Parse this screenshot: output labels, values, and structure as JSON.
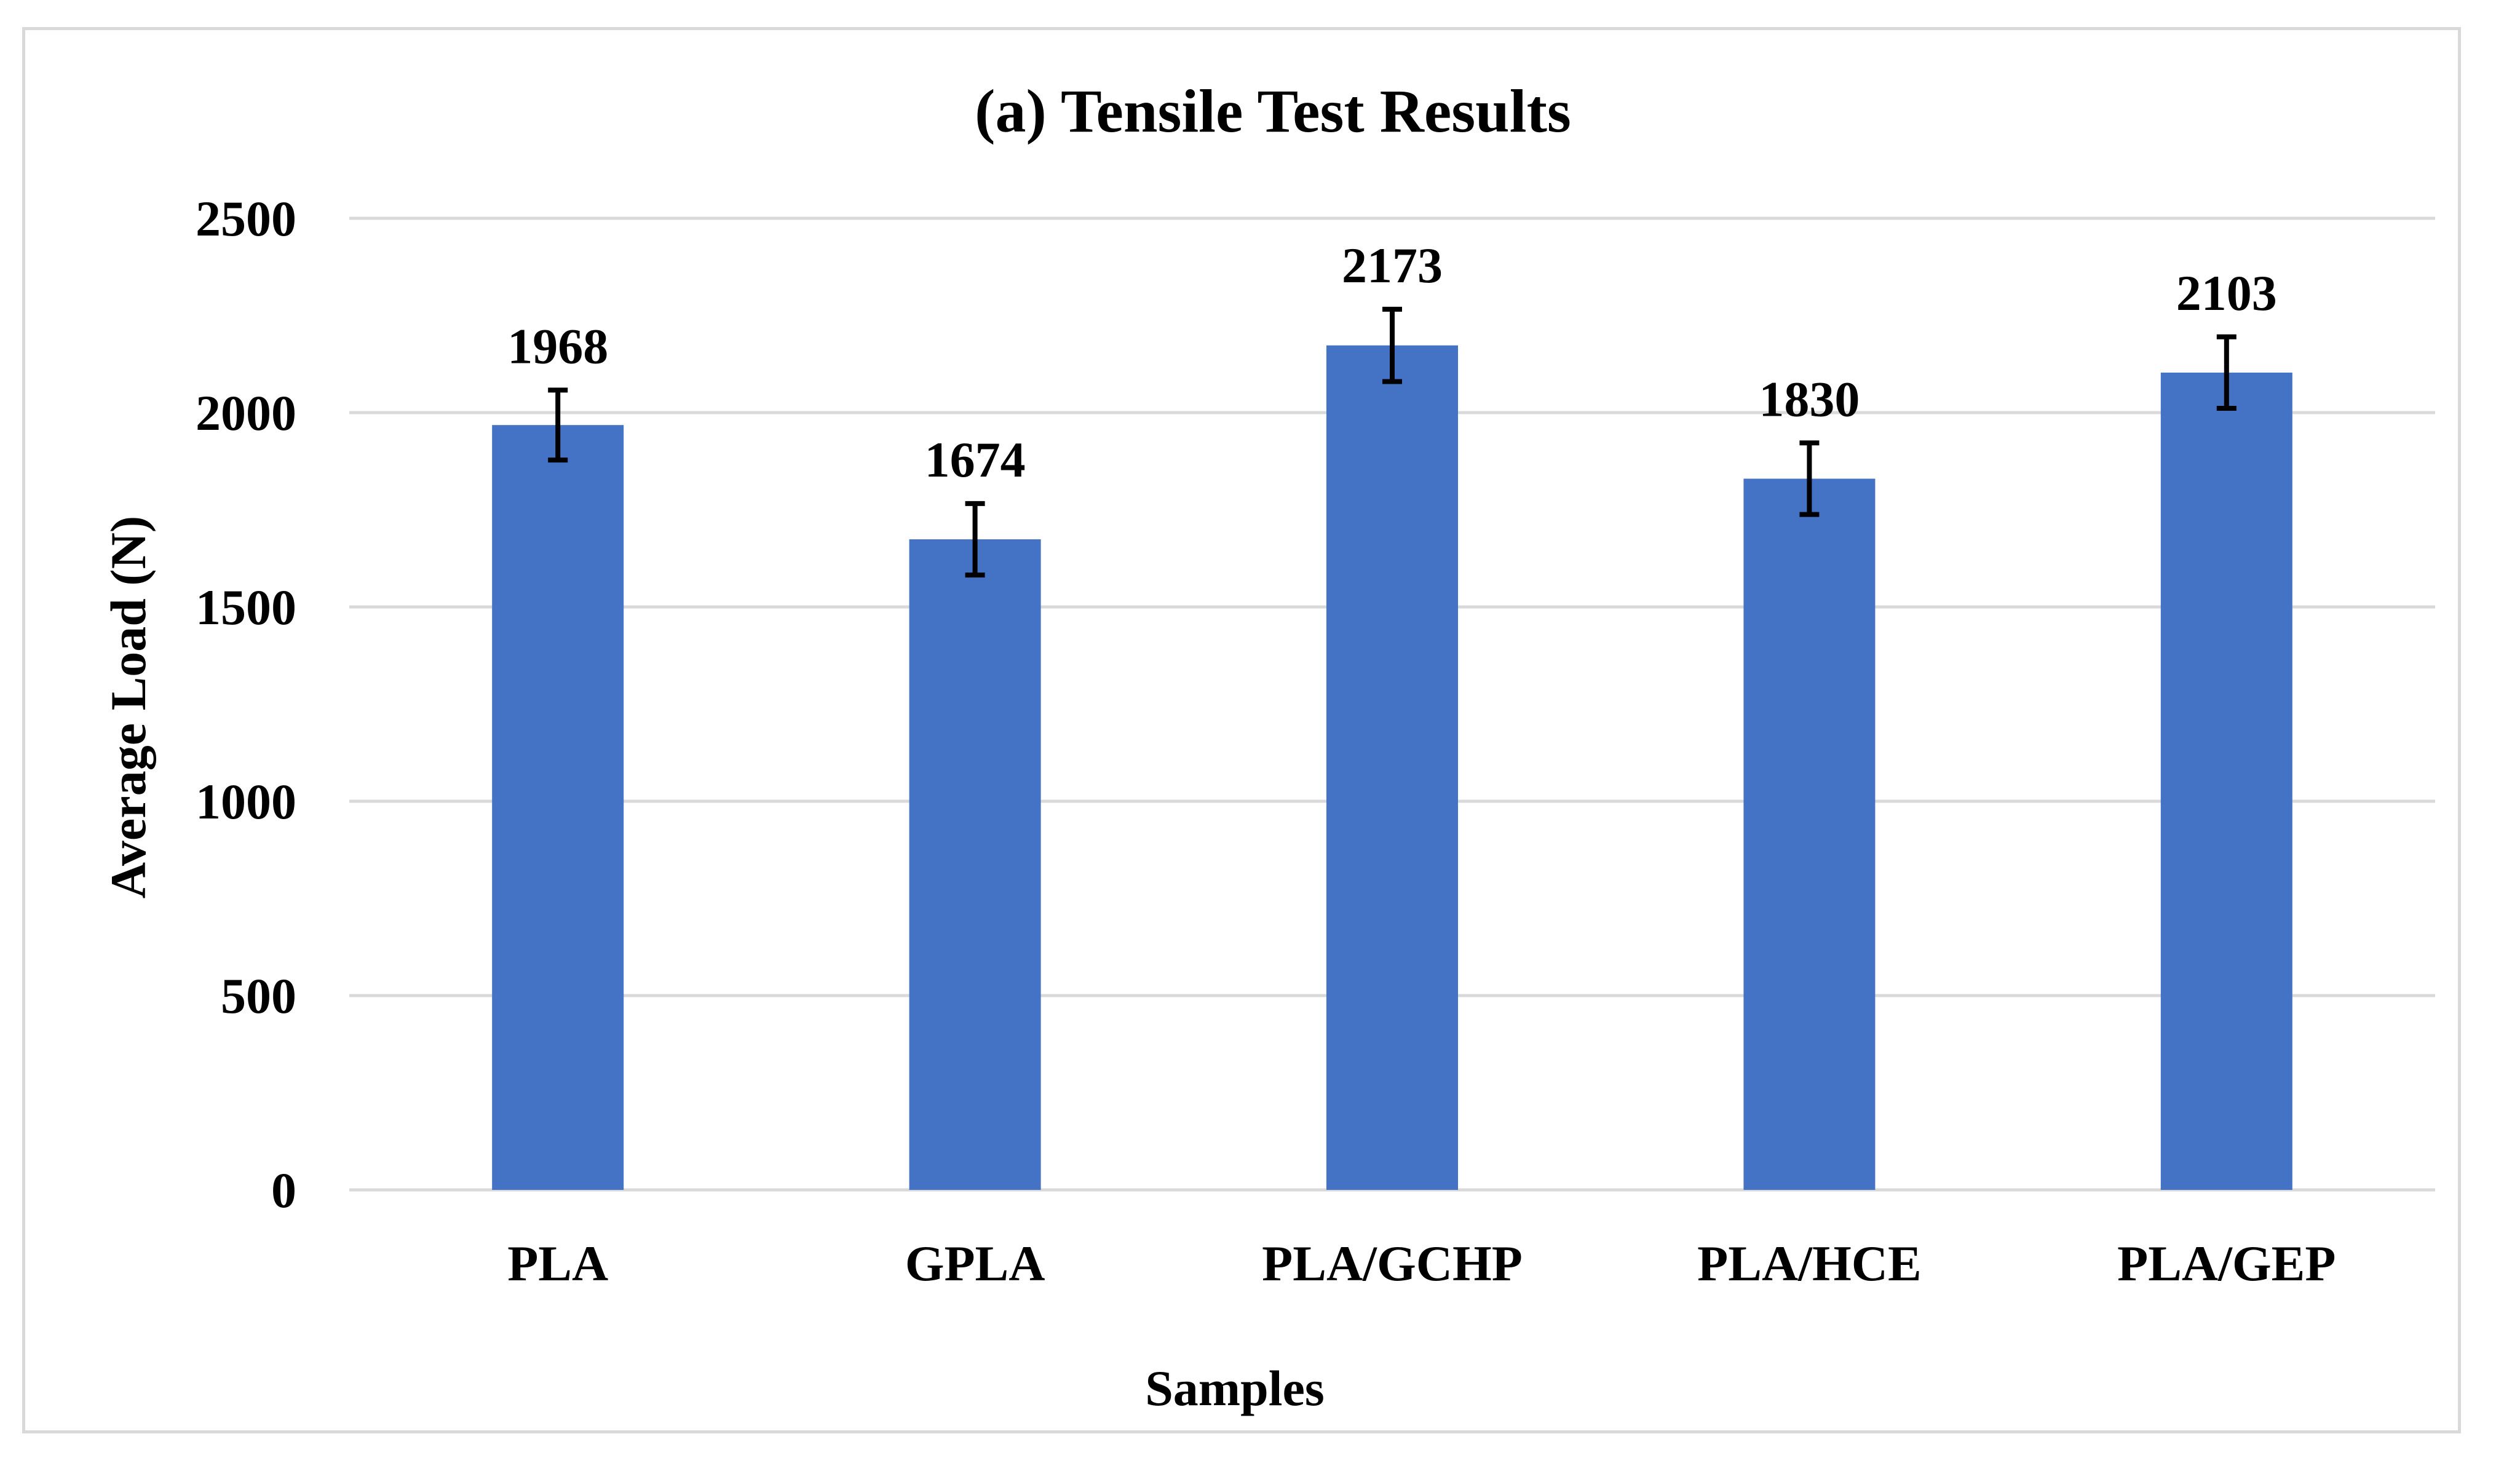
{
  "chart_data": {
    "type": "bar",
    "title": "(a) Tensile Test Results",
    "xlabel": "Samples",
    "ylabel": "Average Load (N)",
    "categories": [
      "PLA",
      "GPLA",
      "PLA/GCHP",
      "PLA/HCE",
      "PLA/GEP"
    ],
    "series": [
      {
        "values": [
          1968,
          1674,
          2173,
          1830,
          2103
        ],
        "error": [
          90,
          92,
          93,
          92,
          92
        ],
        "color": "#4472c4"
      }
    ],
    "data_labels": [
      "1968",
      "1674",
      "2173",
      "1830",
      "2103"
    ],
    "ylim": [
      0,
      2500
    ],
    "yticks": [
      0,
      500,
      1000,
      1500,
      2000,
      2500
    ],
    "ytick_labels": [
      "0",
      "500",
      "1000",
      "1500",
      "2000",
      "2500"
    ],
    "grid": true,
    "legend": "none",
    "gridline_color": "#d9d9d9",
    "errorbar_color": "#000000"
  }
}
